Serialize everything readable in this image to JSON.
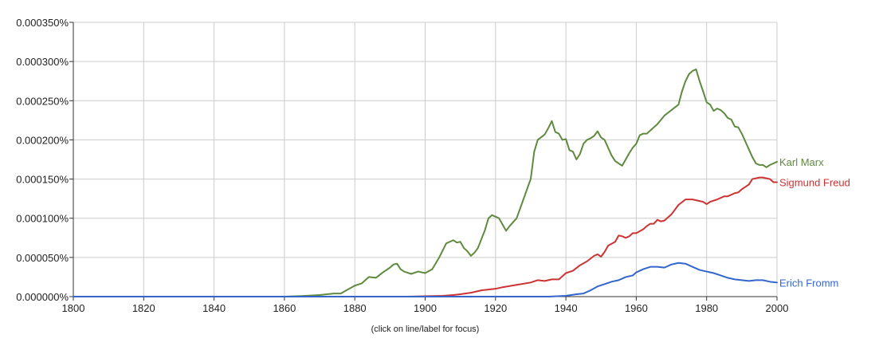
{
  "note": "(click on line/label for focus)",
  "chart_data": {
    "type": "line",
    "title": "",
    "xlabel": "",
    "ylabel": "",
    "xlim": [
      1800,
      2000
    ],
    "ylim": [
      0,
      0.00035
    ],
    "grid": true,
    "legend": "right",
    "x_ticks": [
      1800,
      1820,
      1840,
      1860,
      1880,
      1900,
      1920,
      1940,
      1960,
      1980,
      2000
    ],
    "x_tick_labels": [
      "1800",
      "1820",
      "1840",
      "1860",
      "1880",
      "1900",
      "1920",
      "1940",
      "1960",
      "1980",
      "2000"
    ],
    "y_ticks": [
      0,
      5e-05,
      0.0001,
      0.00015,
      0.0002,
      0.00025,
      0.0003,
      0.00035
    ],
    "y_tick_labels": [
      "0.000000%",
      "0.000050%",
      "0.000100%",
      "0.000150%",
      "0.000200%",
      "0.000250%",
      "0.000300%",
      "0.000350%"
    ],
    "series": [
      {
        "name": "Karl Marx",
        "color": "#5f8a3f",
        "points": [
          [
            1800,
            0
          ],
          [
            1860,
            0
          ],
          [
            1866,
            1e-06
          ],
          [
            1870,
            2e-06
          ],
          [
            1874,
            4e-06
          ],
          [
            1876,
            4e-06
          ],
          [
            1878,
            9e-06
          ],
          [
            1880,
            1.4e-05
          ],
          [
            1882,
            1.7e-05
          ],
          [
            1884,
            2.5e-05
          ],
          [
            1886,
            2.4e-05
          ],
          [
            1888,
            3.1e-05
          ],
          [
            1890,
            3.7e-05
          ],
          [
            1891,
            4.1e-05
          ],
          [
            1892,
            4.2e-05
          ],
          [
            1893,
            3.5e-05
          ],
          [
            1894,
            3.2e-05
          ],
          [
            1896,
            2.9e-05
          ],
          [
            1898,
            3.2e-05
          ],
          [
            1900,
            3e-05
          ],
          [
            1902,
            3.5e-05
          ],
          [
            1904,
            5e-05
          ],
          [
            1906,
            6.8e-05
          ],
          [
            1908,
            7.2e-05
          ],
          [
            1909,
            6.9e-05
          ],
          [
            1910,
            7e-05
          ],
          [
            1911,
            6.2e-05
          ],
          [
            1912,
            5.8e-05
          ],
          [
            1913,
            5.2e-05
          ],
          [
            1914,
            5.6e-05
          ],
          [
            1915,
            6.2e-05
          ],
          [
            1917,
            8.5e-05
          ],
          [
            1918,
            0.0001
          ],
          [
            1919,
            0.000104
          ],
          [
            1921,
            0.0001
          ],
          [
            1922,
            9.2e-05
          ],
          [
            1923,
            8.4e-05
          ],
          [
            1924,
            9e-05
          ],
          [
            1926,
            0.0001
          ],
          [
            1928,
            0.000125
          ],
          [
            1930,
            0.00015
          ],
          [
            1931,
            0.000185
          ],
          [
            1932,
            0.0002
          ],
          [
            1934,
            0.000207
          ],
          [
            1935,
            0.000215
          ],
          [
            1936,
            0.000224
          ],
          [
            1937,
            0.00021
          ],
          [
            1938,
            0.000208
          ],
          [
            1939,
            0.0002
          ],
          [
            1940,
            0.000201
          ],
          [
            1941,
            0.000187
          ],
          [
            1942,
            0.000185
          ],
          [
            1943,
            0.000175
          ],
          [
            1944,
            0.000182
          ],
          [
            1945,
            0.000195
          ],
          [
            1946,
            0.0002
          ],
          [
            1947,
            0.000202
          ],
          [
            1948,
            0.000205
          ],
          [
            1949,
            0.000211
          ],
          [
            1950,
            0.000203
          ],
          [
            1951,
            0.0002
          ],
          [
            1952,
            0.00019
          ],
          [
            1953,
            0.00018
          ],
          [
            1954,
            0.000173
          ],
          [
            1956,
            0.000167
          ],
          [
            1957,
            0.000175
          ],
          [
            1958,
            0.000183
          ],
          [
            1959,
            0.00019
          ],
          [
            1960,
            0.000195
          ],
          [
            1961,
            0.000206
          ],
          [
            1962,
            0.000208
          ],
          [
            1963,
            0.000208
          ],
          [
            1964,
            0.000212
          ],
          [
            1966,
            0.00022
          ],
          [
            1968,
            0.000231
          ],
          [
            1970,
            0.000238
          ],
          [
            1972,
            0.000245
          ],
          [
            1973,
            0.000262
          ],
          [
            1974,
            0.000275
          ],
          [
            1975,
            0.000284
          ],
          [
            1976,
            0.000288
          ],
          [
            1977,
            0.00029
          ],
          [
            1978,
            0.000275
          ],
          [
            1979,
            0.000262
          ],
          [
            1980,
            0.000248
          ],
          [
            1981,
            0.000245
          ],
          [
            1982,
            0.000237
          ],
          [
            1983,
            0.00024
          ],
          [
            1984,
            0.000238
          ],
          [
            1985,
            0.000234
          ],
          [
            1986,
            0.000228
          ],
          [
            1987,
            0.000226
          ],
          [
            1988,
            0.000217
          ],
          [
            1989,
            0.000216
          ],
          [
            1990,
            0.000208
          ],
          [
            1991,
            0.000198
          ],
          [
            1992,
            0.000188
          ],
          [
            1993,
            0.000178
          ],
          [
            1994,
            0.00017
          ],
          [
            1995,
            0.000168
          ],
          [
            1996,
            0.000168
          ],
          [
            1997,
            0.000165
          ],
          [
            1998,
            0.000168
          ],
          [
            2000,
            0.000172
          ]
        ]
      },
      {
        "name": "Sigmund Freud",
        "color": "#cc3333",
        "points": [
          [
            1800,
            0
          ],
          [
            1880,
            0
          ],
          [
            1895,
            0
          ],
          [
            1905,
            1e-06
          ],
          [
            1908,
            2e-06
          ],
          [
            1910,
            3e-06
          ],
          [
            1913,
            5e-06
          ],
          [
            1916,
            8e-06
          ],
          [
            1920,
            1e-05
          ],
          [
            1922,
            1.2e-05
          ],
          [
            1926,
            1.5e-05
          ],
          [
            1930,
            1.8e-05
          ],
          [
            1932,
            2.1e-05
          ],
          [
            1934,
            2e-05
          ],
          [
            1936,
            2.2e-05
          ],
          [
            1938,
            2.2e-05
          ],
          [
            1940,
            3e-05
          ],
          [
            1942,
            3.3e-05
          ],
          [
            1944,
            4e-05
          ],
          [
            1946,
            4.5e-05
          ],
          [
            1948,
            5.2e-05
          ],
          [
            1949,
            5.4e-05
          ],
          [
            1950,
            5.1e-05
          ],
          [
            1951,
            5.7e-05
          ],
          [
            1952,
            6.5e-05
          ],
          [
            1954,
            7e-05
          ],
          [
            1955,
            7.8e-05
          ],
          [
            1956,
            7.7e-05
          ],
          [
            1957,
            7.5e-05
          ],
          [
            1958,
            7.7e-05
          ],
          [
            1959,
            8.1e-05
          ],
          [
            1960,
            8.1e-05
          ],
          [
            1962,
            8.6e-05
          ],
          [
            1963,
            9e-05
          ],
          [
            1964,
            9.3e-05
          ],
          [
            1965,
            9.3e-05
          ],
          [
            1966,
            9.8e-05
          ],
          [
            1967,
            9.6e-05
          ],
          [
            1968,
            9.7e-05
          ],
          [
            1970,
            0.000105
          ],
          [
            1972,
            0.000117
          ],
          [
            1974,
            0.000124
          ],
          [
            1976,
            0.000124
          ],
          [
            1977,
            0.000123
          ],
          [
            1978,
            0.000122
          ],
          [
            1979,
            0.000121
          ],
          [
            1980,
            0.000118
          ],
          [
            1981,
            0.000121
          ],
          [
            1983,
            0.000124
          ],
          [
            1985,
            0.000128
          ],
          [
            1986,
            0.000128
          ],
          [
            1988,
            0.000132
          ],
          [
            1989,
            0.000133
          ],
          [
            1990,
            0.000137
          ],
          [
            1991,
            0.00014
          ],
          [
            1992,
            0.000143
          ],
          [
            1993,
            0.00015
          ],
          [
            1995,
            0.000152
          ],
          [
            1996,
            0.000152
          ],
          [
            1997,
            0.000151
          ],
          [
            1998,
            0.00015
          ],
          [
            1999,
            0.000146
          ],
          [
            2000,
            0.000146
          ]
        ]
      },
      {
        "name": "Erich Fromm",
        "color": "#3366cc",
        "points": [
          [
            1800,
            0
          ],
          [
            1920,
            0
          ],
          [
            1935,
            0
          ],
          [
            1940,
            1e-06
          ],
          [
            1943,
            3e-06
          ],
          [
            1945,
            4e-06
          ],
          [
            1947,
            8e-06
          ],
          [
            1949,
            1.3e-05
          ],
          [
            1951,
            1.6e-05
          ],
          [
            1953,
            1.9e-05
          ],
          [
            1955,
            2.1e-05
          ],
          [
            1957,
            2.5e-05
          ],
          [
            1959,
            2.7e-05
          ],
          [
            1960,
            3.1e-05
          ],
          [
            1962,
            3.5e-05
          ],
          [
            1964,
            3.8e-05
          ],
          [
            1966,
            3.8e-05
          ],
          [
            1968,
            3.7e-05
          ],
          [
            1970,
            4.1e-05
          ],
          [
            1972,
            4.3e-05
          ],
          [
            1974,
            4.2e-05
          ],
          [
            1976,
            3.8e-05
          ],
          [
            1978,
            3.4e-05
          ],
          [
            1980,
            3.2e-05
          ],
          [
            1982,
            3e-05
          ],
          [
            1984,
            2.7e-05
          ],
          [
            1986,
            2.4e-05
          ],
          [
            1988,
            2.2e-05
          ],
          [
            1990,
            2.1e-05
          ],
          [
            1992,
            2e-05
          ],
          [
            1994,
            2.1e-05
          ],
          [
            1996,
            2.1e-05
          ],
          [
            1998,
            1.9e-05
          ],
          [
            2000,
            1.8e-05
          ]
        ]
      }
    ]
  }
}
